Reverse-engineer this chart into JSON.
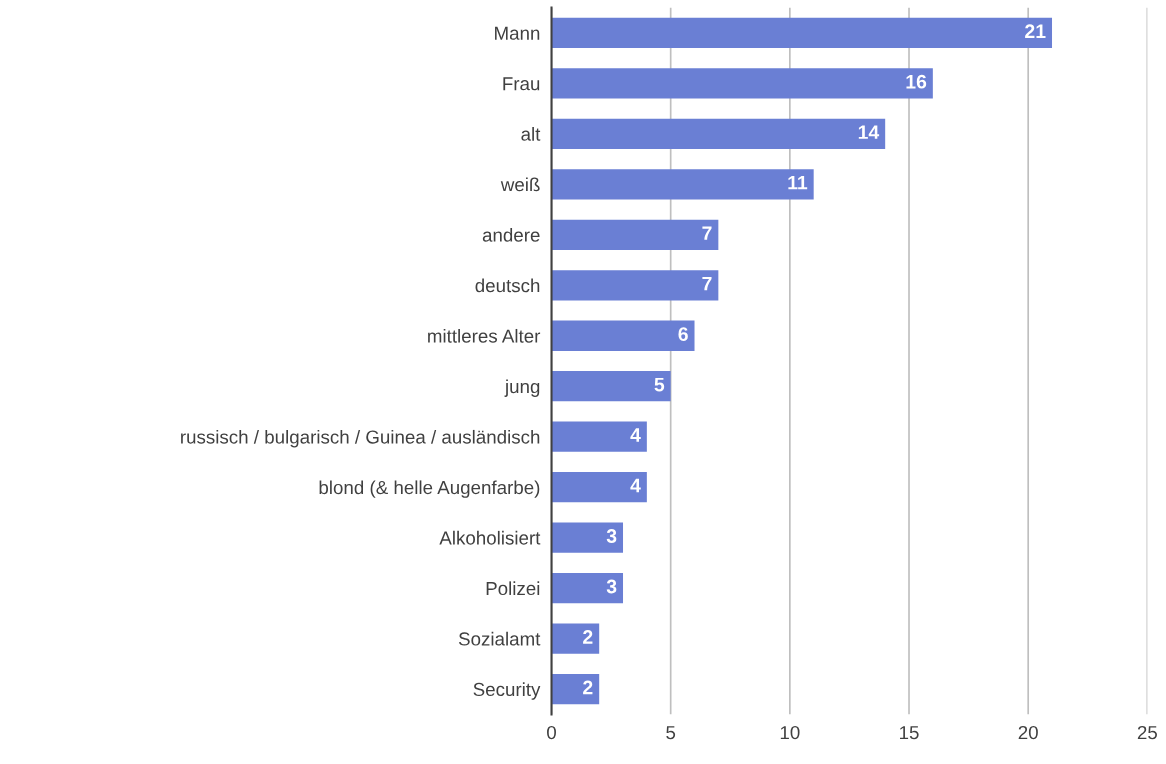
{
  "chart_data": {
    "type": "bar",
    "orientation": "horizontal",
    "categories": [
      "Mann",
      "Frau",
      "alt",
      "weiß",
      "andere",
      "deutsch",
      "mittleres Alter",
      "jung",
      "russisch / bulgarisch / Guinea / ausländisch",
      "blond (& helle Augenfarbe)",
      "Alkoholisiert",
      "Polizei",
      "Sozialamt",
      "Security"
    ],
    "values": [
      21,
      16,
      14,
      11,
      7,
      7,
      6,
      5,
      4,
      4,
      3,
      3,
      2,
      2
    ],
    "color": "#6a7fd4",
    "xlim": [
      0,
      25
    ],
    "xticks": [
      0,
      5,
      10,
      15,
      20,
      25
    ],
    "grid": "x",
    "data_labels": true
  }
}
